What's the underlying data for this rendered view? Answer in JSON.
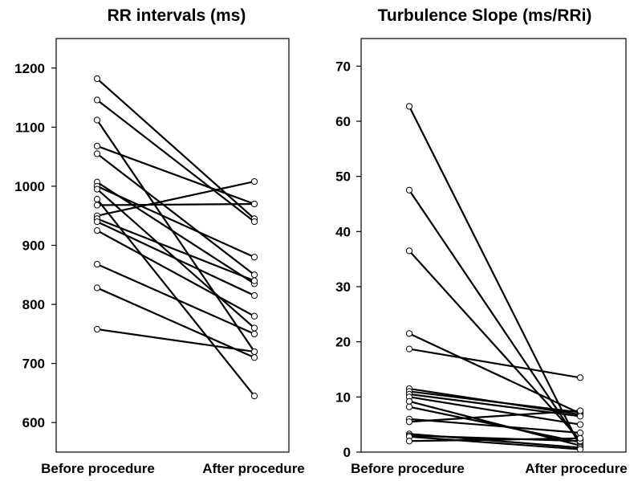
{
  "chart_data": [
    {
      "type": "line",
      "title": "RR intervals (ms)",
      "categories": [
        "Before procedure",
        "After procedure"
      ],
      "ylim": [
        550,
        1250
      ],
      "yticks": [
        600,
        700,
        800,
        900,
        1000,
        1100,
        1200
      ],
      "grid": false,
      "pairs": [
        [
          1182,
          945
        ],
        [
          1146,
          940
        ],
        [
          1112,
          720
        ],
        [
          1068,
          970
        ],
        [
          1055,
          850
        ],
        [
          1007,
          835
        ],
        [
          1000,
          880
        ],
        [
          995,
          760
        ],
        [
          978,
          645
        ],
        [
          968,
          970
        ],
        [
          950,
          1008
        ],
        [
          945,
          840
        ],
        [
          940,
          815
        ],
        [
          925,
          780
        ],
        [
          868,
          750
        ],
        [
          828,
          710
        ],
        [
          758,
          720
        ]
      ]
    },
    {
      "type": "line",
      "title": "Turbulence Slope (ms/RRi)",
      "categories": [
        "Before procedure",
        "After procedure"
      ],
      "ylim": [
        0,
        75
      ],
      "yticks": [
        0,
        10,
        20,
        30,
        40,
        50,
        60,
        70
      ],
      "grid": false,
      "pairs": [
        [
          62.7,
          1.0
        ],
        [
          47.5,
          1.5
        ],
        [
          36.5,
          2.2
        ],
        [
          21.5,
          7.0
        ],
        [
          18.7,
          13.5
        ],
        [
          11.5,
          6.8
        ],
        [
          11.0,
          7.2
        ],
        [
          10.5,
          6.5
        ],
        [
          10.0,
          5.0
        ],
        [
          9.2,
          1.2
        ],
        [
          8.2,
          1.8
        ],
        [
          6.0,
          3.5
        ],
        [
          5.5,
          7.5
        ],
        [
          3.3,
          0.8
        ],
        [
          3.0,
          2.0
        ],
        [
          2.8,
          0.5
        ],
        [
          2.0,
          2.5
        ]
      ]
    }
  ]
}
